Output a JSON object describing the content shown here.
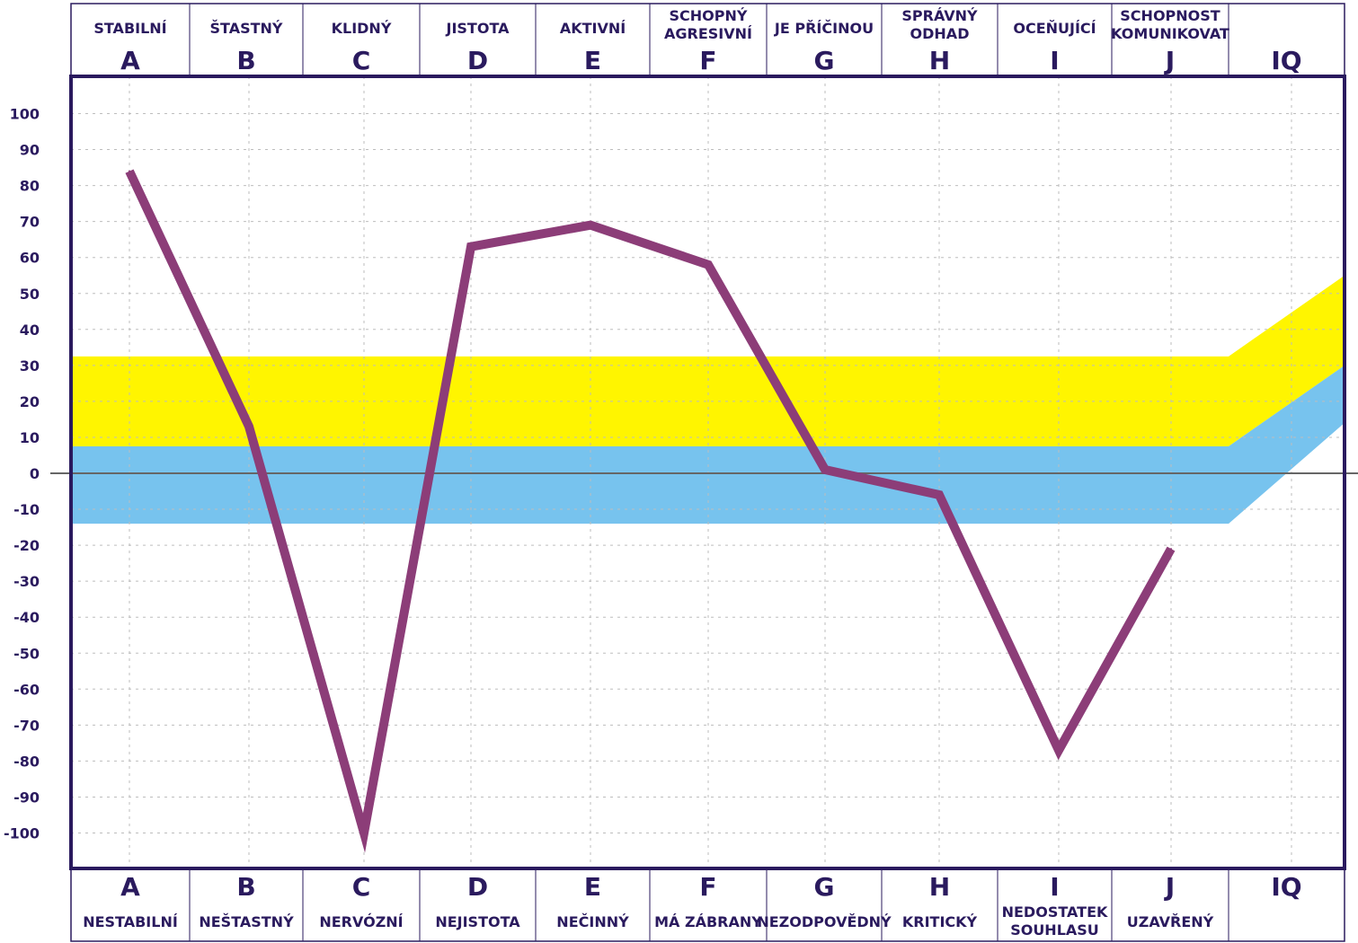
{
  "chart_data": {
    "type": "line",
    "categories": [
      "A",
      "B",
      "C",
      "D",
      "E",
      "F",
      "G",
      "H",
      "I",
      "J"
    ],
    "extra_column": "IQ",
    "top_labels": [
      [
        "STABILNÍ"
      ],
      [
        "ŠTASTNÝ"
      ],
      [
        "KLIDNÝ"
      ],
      [
        "JISTOTA"
      ],
      [
        "AKTIVNÍ"
      ],
      [
        "SCHOPNÝ",
        "AGRESIVNÍ"
      ],
      [
        "JE PŘÍČINOU"
      ],
      [
        "SPRÁVNÝ",
        "ODHAD"
      ],
      [
        "OCEŇUJÍCÍ"
      ],
      [
        "SCHOPNOST",
        "KOMUNIKOVAT"
      ]
    ],
    "bottom_labels": [
      [
        "NESTABILNÍ"
      ],
      [
        "NEŠTASTNÝ"
      ],
      [
        "NERVÓZNÍ"
      ],
      [
        "NEJISTOTA"
      ],
      [
        "NEČINNÝ"
      ],
      [
        "MÁ ZÁBRANY"
      ],
      [
        "NEZODPOVĚDNÝ"
      ],
      [
        "KRITICKÝ"
      ],
      [
        "NEDOSTATEK",
        "SOUHLASU"
      ],
      [
        "UZAVŘENÝ"
      ]
    ],
    "values": [
      84,
      13,
      -100,
      63,
      69,
      58,
      1,
      -6,
      -77,
      -21
    ],
    "y_ticks": [
      "100",
      "90",
      "80",
      "70",
      "60",
      "50",
      "40",
      "30",
      "20",
      "10",
      "0",
      "-10",
      "-20",
      "-30",
      "-40",
      "-50",
      "-60",
      "-70",
      "-80",
      "-90",
      "-100"
    ],
    "ylim": [
      -110,
      110
    ],
    "bands": [
      {
        "name": "yellow",
        "from": 7.5,
        "to": 32.5,
        "iq_end_from": 30,
        "iq_end_to": 55,
        "color": "#fff500"
      },
      {
        "name": "blue",
        "from": -14,
        "to": 7.5,
        "iq_end_from": 14,
        "iq_end_to": 30,
        "color": "#77c3ee"
      }
    ],
    "grid": true,
    "colors": {
      "line": "#8c3d78",
      "frame": "#2a1a5e",
      "text": "#2a1a5e",
      "zero": "#666666"
    }
  }
}
